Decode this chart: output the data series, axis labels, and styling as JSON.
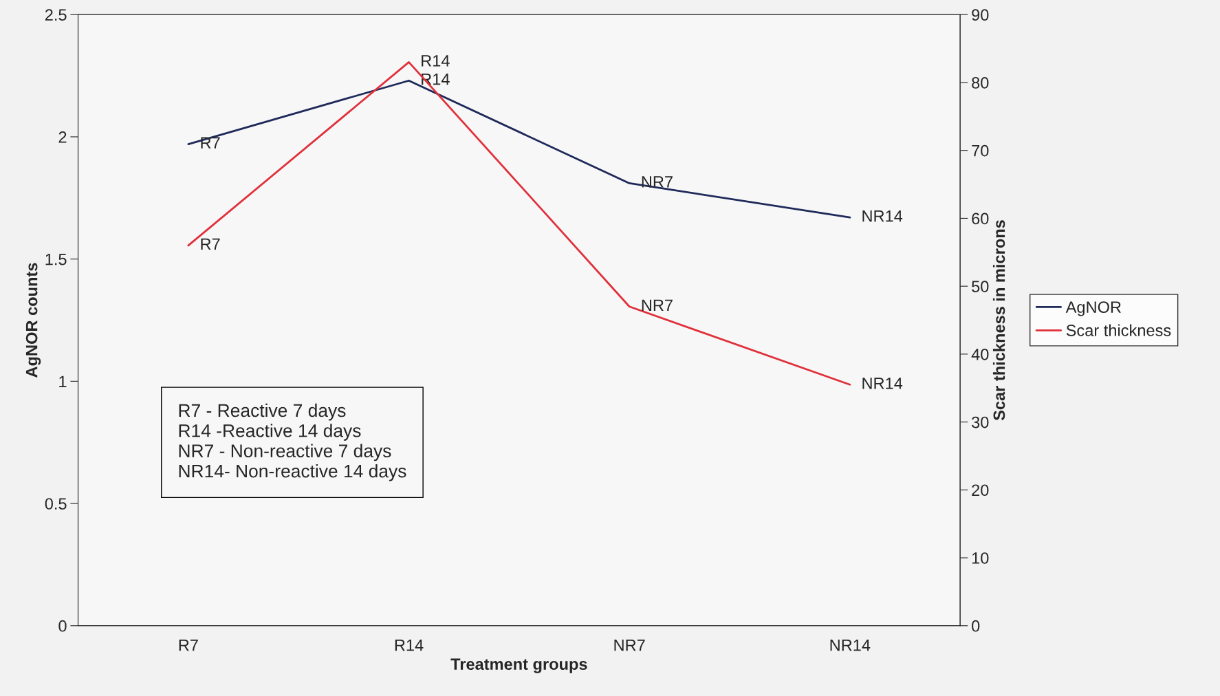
{
  "chart_data": {
    "type": "line",
    "xlabel": "Treatment groups",
    "ylabel": "AgNOR counts",
    "y2label": "Scar thickness in microns",
    "categories": [
      "R7",
      "R14",
      "NR7",
      "NR14"
    ],
    "series": [
      {
        "name": "AgNOR",
        "color": "#1f2a5a",
        "values": [
          1.97,
          2.23,
          1.81,
          1.67
        ],
        "value_labels": [
          "R7",
          "R14",
          "NR7",
          "NR14"
        ]
      },
      {
        "name": "Scar thickness",
        "color": "#e0303a",
        "axis": "y2",
        "values": [
          56,
          83,
          47,
          35.5
        ],
        "value_labels": [
          "R7",
          "R14",
          "NR7",
          "NR14"
        ]
      }
    ],
    "ylim": [
      0,
      2.5
    ],
    "yticks": [
      0,
      0.5,
      1,
      1.5,
      2,
      2.5
    ],
    "y2lim": [
      0,
      90
    ],
    "y2ticks": [
      0,
      10,
      20,
      30,
      40,
      50,
      60,
      70,
      80,
      90
    ],
    "annotations": [
      "R7 - Reactive 7 days\nR14 -Reactive 14 days\nNR7 - Non-reactive 7 days\nNR14- Non-reactive 14 days"
    ],
    "grid": false,
    "legend": "right",
    "marker": "none",
    "line_style": "solid"
  }
}
